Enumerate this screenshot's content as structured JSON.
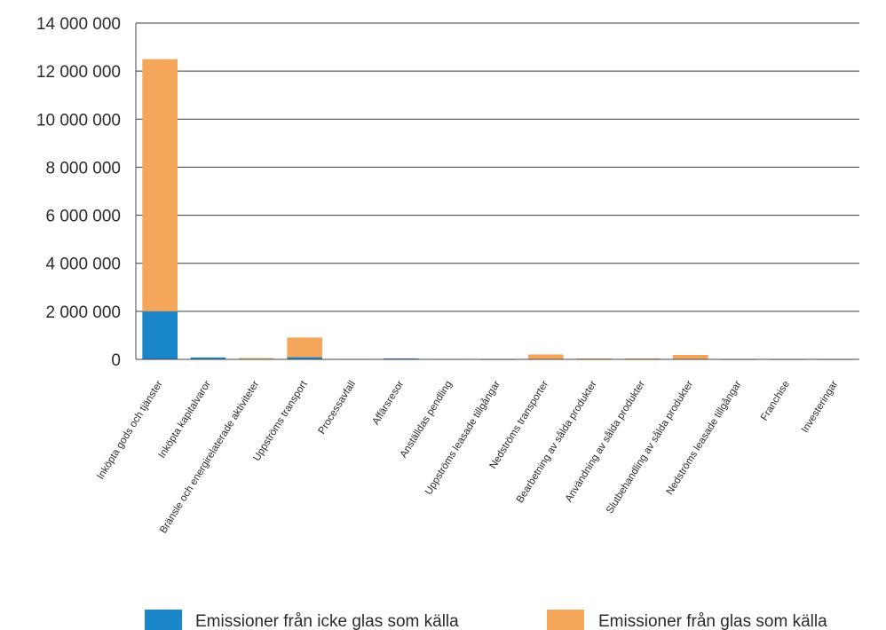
{
  "chart_data": {
    "type": "bar",
    "stacked": true,
    "categories": [
      "Inköpta gods och tjänster",
      "Inköpta kapitalvaror",
      "Bränsle och energirelaterade aktiviteter",
      "Uppströms transport",
      "Processavfall",
      "Affärsresor",
      "Anställdas pendling",
      "Uppströms leasade tillgångar",
      "Nedströms transporter",
      "Bearbetning av sålda produkter",
      "Användning av sålda produkter",
      "Slutbehandling av sålda produkter",
      "Nedströms leasade tillgångar",
      "Franchise",
      "Investeringar"
    ],
    "series": [
      {
        "name": "Emissioner från icke glas som källa",
        "color": "#1a85c8",
        "values": [
          2000000,
          80000,
          25000,
          90000,
          20000,
          40000,
          10000,
          5000,
          15000,
          10000,
          10000,
          15000,
          5000,
          5000,
          5000
        ]
      },
      {
        "name": "Emissioner från glas som källa",
        "color": "#f4a65a",
        "values": [
          10500000,
          0,
          30000,
          820000,
          0,
          0,
          0,
          0,
          190000,
          30000,
          30000,
          170000,
          0,
          0,
          0
        ]
      }
    ],
    "yticks": [
      "0",
      "2 000 000",
      "4 000 000",
      "6 000 000",
      "8 000 000",
      "10 000 000",
      "12 000 000",
      "14 000 000"
    ],
    "ylim": [
      0,
      14000000
    ],
    "grid": true,
    "legend": "bottom"
  }
}
